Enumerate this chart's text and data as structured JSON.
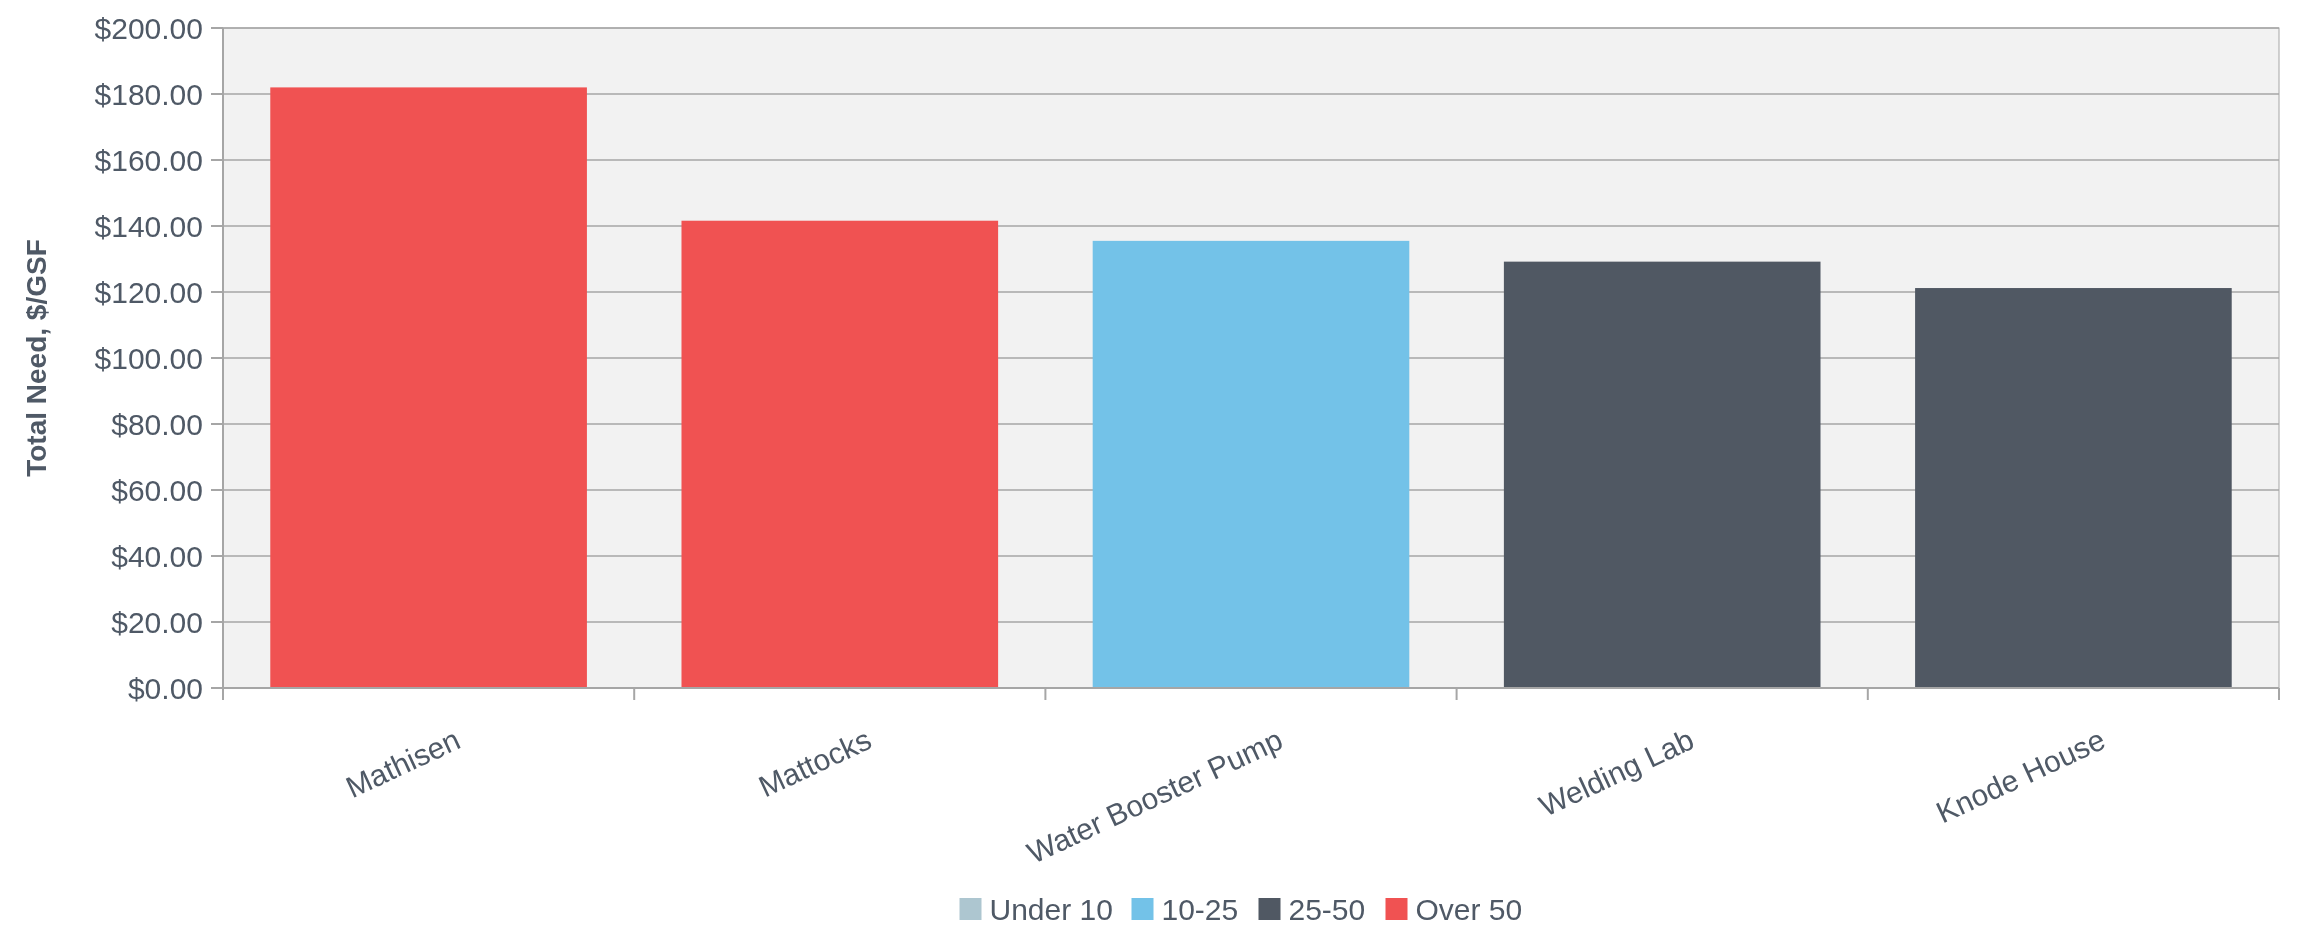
{
  "chart_data": {
    "type": "bar",
    "ylabel": "Total Need, $/GSF",
    "categories": [
      "Mathisen",
      "Mattocks",
      "Water Booster Pump",
      "Welding Lab",
      "Knode House"
    ],
    "series": [
      {
        "name": "Under 10",
        "color": "#adc6d0",
        "values": [
          null,
          null,
          null,
          null,
          null
        ]
      },
      {
        "name": "10-25",
        "color": "#73c2e8",
        "values": [
          null,
          null,
          135.5,
          null,
          null
        ]
      },
      {
        "name": "25-50",
        "color": "#505863",
        "values": [
          null,
          null,
          null,
          129.2,
          121.2
        ]
      },
      {
        "name": "Over 50",
        "color": "#f05252",
        "values": [
          182,
          141.6,
          null,
          null,
          null
        ]
      }
    ],
    "stacked": true,
    "ylim": [
      0,
      200
    ],
    "yticks": [
      {
        "value": 0,
        "label": "$0.00"
      },
      {
        "value": 20,
        "label": "$20.00"
      },
      {
        "value": 40,
        "label": "$40.00"
      },
      {
        "value": 60,
        "label": "$60.00"
      },
      {
        "value": 80,
        "label": "$80.00"
      },
      {
        "value": 100,
        "label": "$100.00"
      },
      {
        "value": 120,
        "label": "$120.00"
      },
      {
        "value": 140,
        "label": "$140.00"
      },
      {
        "value": 160,
        "label": "$160.00"
      },
      {
        "value": 180,
        "label": "$180.00"
      },
      {
        "value": 200,
        "label": "$200.00"
      }
    ],
    "grid": "y",
    "legend": "bottom"
  }
}
